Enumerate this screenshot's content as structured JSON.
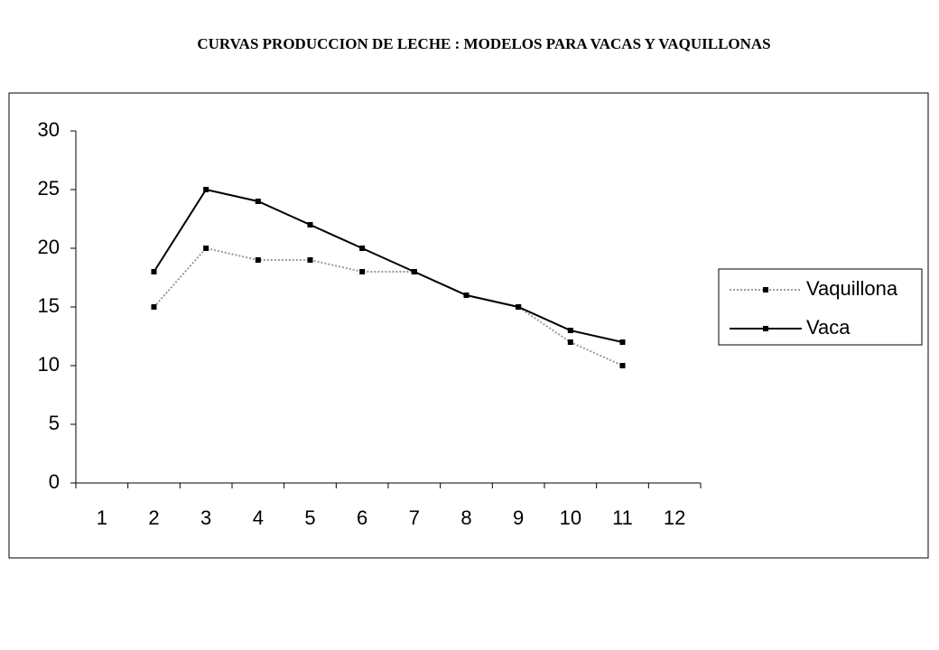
{
  "chart_data": {
    "type": "line",
    "title": "CURVAS PRODUCCION DE LECHE : MODELOS PARA VACAS Y VAQUILLONAS",
    "categories": [
      "1",
      "2",
      "3",
      "4",
      "5",
      "6",
      "7",
      "8",
      "9",
      "10",
      "11",
      "12"
    ],
    "series": [
      {
        "name": "Vaquillona",
        "color": "#999999",
        "dash": "2,2",
        "values": [
          null,
          15,
          20,
          19,
          19,
          18,
          18,
          16,
          15,
          12,
          10,
          null
        ]
      },
      {
        "name": "Vaca",
        "color": "#000000",
        "values": [
          null,
          18,
          25,
          24,
          22,
          20,
          18,
          16,
          15,
          13,
          12,
          null
        ]
      }
    ],
    "ylim": [
      0,
      30
    ],
    "yticks": [
      0,
      5,
      10,
      15,
      20,
      25,
      30
    ],
    "legend": "right"
  }
}
